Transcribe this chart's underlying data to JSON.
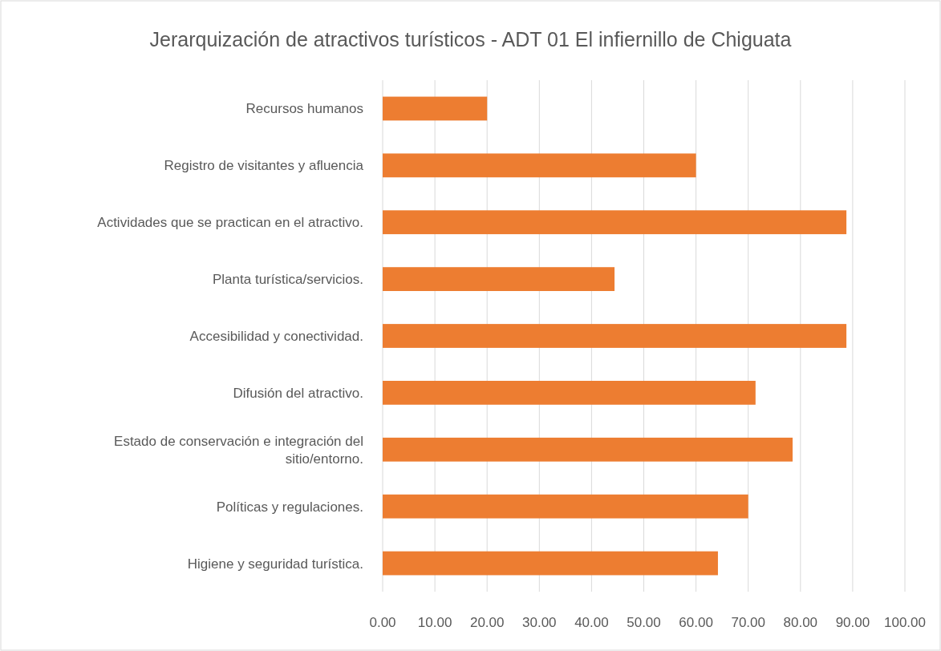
{
  "chart_data": {
    "type": "bar",
    "orientation": "horizontal",
    "title": "Jerarquización de atractivos turísticos - ADT 01 El infiernillo de Chiguata",
    "categories": [
      "Recursos humanos",
      "Registro de visitantes y afluencia",
      "Actividades que se practican en el atractivo.",
      "Planta turística/servicios.",
      "Accesibilidad y conectividad.",
      "Difusión del atractivo.",
      "Estado de conservación e integración del sitio/entorno.",
      "Políticas y regulaciones.",
      "Higiene y seguridad turística."
    ],
    "values": [
      20,
      60,
      88.8,
      44.4,
      88.8,
      71.4,
      78.5,
      70,
      64.2
    ],
    "color": "#ed7d31",
    "xlim": [
      0,
      100
    ],
    "xticks": [
      {
        "value": 0,
        "label": "0.00"
      },
      {
        "value": 10,
        "label": "10.00"
      },
      {
        "value": 20,
        "label": "20.00"
      },
      {
        "value": 30,
        "label": "30.00"
      },
      {
        "value": 40,
        "label": "40.00"
      },
      {
        "value": 50,
        "label": "50.00"
      },
      {
        "value": 60,
        "label": "60.00"
      },
      {
        "value": 70,
        "label": "70.00"
      },
      {
        "value": 80,
        "label": "80.00"
      },
      {
        "value": 90,
        "label": "90.00"
      },
      {
        "value": 100,
        "label": "100.00"
      }
    ],
    "grid": "x"
  }
}
